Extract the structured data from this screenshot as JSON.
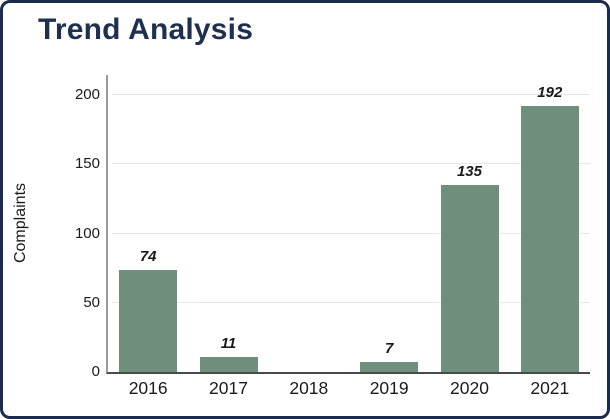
{
  "page": {
    "border_color": "#1b2b4d",
    "background_color": "#ffffff"
  },
  "chart_data": {
    "type": "bar",
    "title": "Trend Analysis",
    "xlabel": "",
    "ylabel": "Complaints",
    "categories": [
      "2016",
      "2017",
      "2018",
      "2019",
      "2020",
      "2021"
    ],
    "values": [
      74,
      11,
      0,
      7,
      135,
      192
    ],
    "bar_labels": [
      "74",
      "11",
      "",
      "7",
      "135",
      "192"
    ],
    "yticks": [
      0,
      50,
      100,
      150,
      200
    ],
    "ylim": [
      0,
      215
    ],
    "grid": "horizontal",
    "legend_position": "none",
    "bar_color": "#6f8f7c",
    "title_color": "#1e2f4f",
    "text_color": "#1a1a1a",
    "gridline_color": "#e7e7e7"
  }
}
